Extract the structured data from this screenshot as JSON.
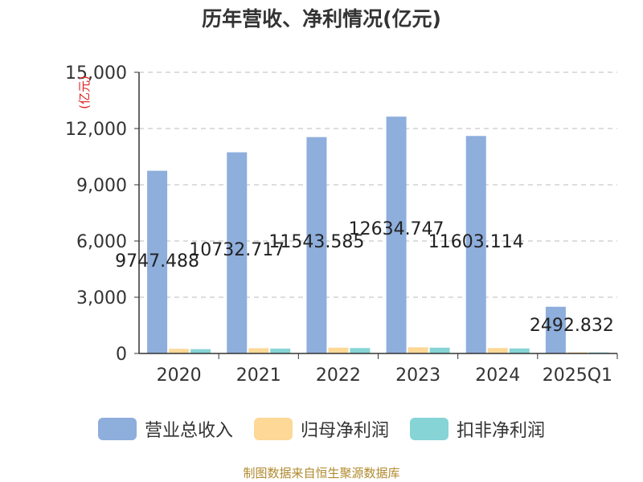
{
  "chart_data": {
    "type": "bar",
    "title": "历年营收、净利情况(亿元)",
    "ylabel": "(亿元)",
    "categories": [
      "2020",
      "2021",
      "2022",
      "2023",
      "2024",
      "2025Q1"
    ],
    "ylim": [
      0,
      15000
    ],
    "yticks": [
      "0",
      "3,000",
      "6,000",
      "9,000",
      "12,000",
      "15,000"
    ],
    "ytick_values": [
      0,
      3000,
      6000,
      9000,
      12000,
      15000
    ],
    "grid": true,
    "legend_position": "bottom",
    "series": [
      {
        "name": "营业总收入",
        "color": "#8eaedc",
        "values": [
          9747.488,
          10732.717,
          11543.585,
          12634.747,
          11603.114,
          2492.832
        ]
      },
      {
        "name": "归母净利润",
        "color": "#fdd897",
        "values": [
          250,
          280,
          310,
          330,
          290,
          60
        ]
      },
      {
        "name": "扣非净利润",
        "color": "#86d4d6",
        "values": [
          230,
          260,
          290,
          310,
          270,
          55
        ]
      }
    ],
    "data_labels": [
      "9747.488",
      "10732.717",
      "11543.585",
      "12634.747",
      "11603.114",
      "2492.832"
    ]
  },
  "footer": {
    "source": "制图数据来自恒生聚源数据库"
  }
}
